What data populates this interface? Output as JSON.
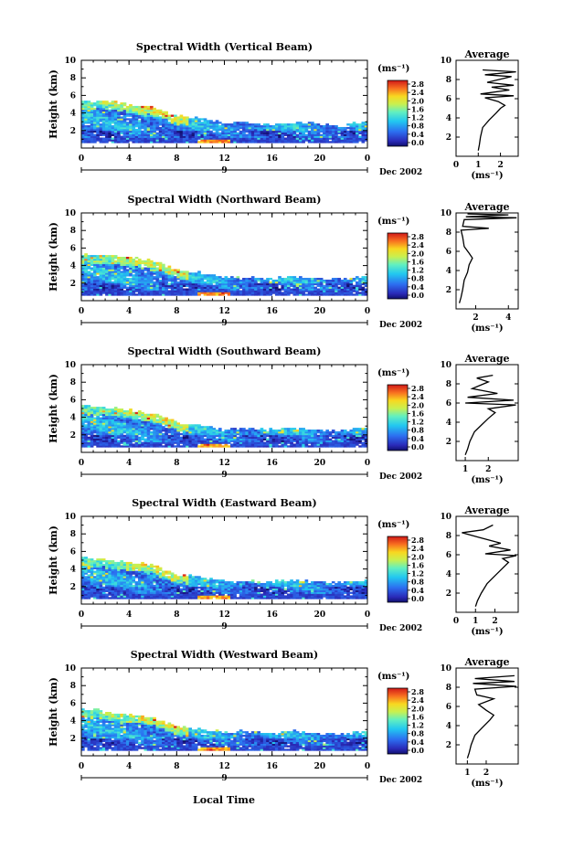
{
  "figure": {
    "xlabel": "Local Time",
    "ylabel": "Height (km)",
    "date_label": "Dec 2002",
    "date_tick": "9",
    "avg_title": "Average",
    "units": "(ms⁻¹)",
    "colorbar_ticks": [
      "2.8",
      "2.4",
      "2.0",
      "1.6",
      "1.2",
      "0.8",
      "0.4",
      "0.0"
    ]
  },
  "chart_data": [
    {
      "type": "heatmap",
      "title": "Spectral Width (Vertical Beam)",
      "x_ticks": [
        "0",
        "4",
        "8",
        "12",
        "16",
        "20",
        "0"
      ],
      "xlim": [
        0,
        24
      ],
      "ylim": [
        0,
        10
      ],
      "y_ticks": [
        "2",
        "4",
        "6",
        "8",
        "10"
      ],
      "colorbar_range": [
        0,
        3.0
      ],
      "boundary": [
        [
          0,
          5.3
        ],
        [
          2,
          5.3
        ],
        [
          4,
          4.9
        ],
        [
          6,
          4.6
        ],
        [
          8,
          3.6
        ],
        [
          10,
          3.3
        ],
        [
          12,
          2.8
        ],
        [
          14,
          2.8
        ],
        [
          16,
          2.6
        ],
        [
          18,
          2.8
        ],
        [
          20,
          2.6
        ],
        [
          22,
          2.5
        ],
        [
          24,
          2.9
        ]
      ],
      "profile": {
        "type": "line",
        "xlabel": "(ms⁻¹)",
        "xlim": [
          0,
          2.8
        ],
        "x_ticks": [
          "0",
          "1",
          "2"
        ],
        "points": [
          [
            1.0,
            0.6
          ],
          [
            1.05,
            1.2
          ],
          [
            1.1,
            2.0
          ],
          [
            1.2,
            3.0
          ],
          [
            1.5,
            3.8
          ],
          [
            1.8,
            4.5
          ],
          [
            2.0,
            5.0
          ],
          [
            2.2,
            5.3
          ],
          [
            1.9,
            5.7
          ],
          [
            1.3,
            6.1
          ],
          [
            2.6,
            6.3
          ],
          [
            1.1,
            6.5
          ],
          [
            2.4,
            6.9
          ],
          [
            1.6,
            7.2
          ],
          [
            2.6,
            7.4
          ],
          [
            1.4,
            7.7
          ],
          [
            2.5,
            8.3
          ],
          [
            1.3,
            8.5
          ],
          [
            2.7,
            8.8
          ],
          [
            1.2,
            9.0
          ]
        ]
      }
    },
    {
      "type": "heatmap",
      "title": "Spectral Width (Northward Beam)",
      "x_ticks": [
        "0",
        "4",
        "8",
        "12",
        "16",
        "20",
        "0"
      ],
      "xlim": [
        0,
        24
      ],
      "ylim": [
        0,
        10
      ],
      "y_ticks": [
        "2",
        "4",
        "6",
        "8",
        "10"
      ],
      "colorbar_range": [
        0,
        3.0
      ],
      "boundary": [
        [
          0,
          5.2
        ],
        [
          2,
          5.0
        ],
        [
          4,
          4.8
        ],
        [
          6,
          4.5
        ],
        [
          8,
          3.4
        ],
        [
          10,
          3.1
        ],
        [
          12,
          2.6
        ],
        [
          14,
          2.6
        ],
        [
          16,
          2.4
        ],
        [
          18,
          2.7
        ],
        [
          20,
          2.5
        ],
        [
          22,
          2.4
        ],
        [
          24,
          2.8
        ]
      ],
      "profile": {
        "type": "line",
        "xlabel": "(ms⁻¹)",
        "xlim": [
          0.8,
          4.6
        ],
        "x_ticks": [
          "2",
          "4"
        ],
        "points": [
          [
            1.0,
            0.6
          ],
          [
            1.1,
            1.2
          ],
          [
            1.2,
            2.0
          ],
          [
            1.3,
            3.0
          ],
          [
            1.5,
            3.8
          ],
          [
            1.6,
            4.6
          ],
          [
            1.8,
            5.3
          ],
          [
            1.6,
            5.8
          ],
          [
            1.3,
            6.5
          ],
          [
            1.2,
            7.5
          ],
          [
            1.1,
            8.2
          ],
          [
            2.8,
            8.4
          ],
          [
            1.2,
            8.6
          ],
          [
            1.3,
            9.3
          ],
          [
            4.5,
            9.5
          ],
          [
            1.4,
            9.6
          ],
          [
            4.0,
            9.8
          ],
          [
            1.5,
            9.9
          ]
        ]
      }
    },
    {
      "type": "heatmap",
      "title": "Spectral Width (Southward Beam)",
      "x_ticks": [
        "0",
        "4",
        "8",
        "12",
        "16",
        "20",
        "0"
      ],
      "xlim": [
        0,
        24
      ],
      "ylim": [
        0,
        10
      ],
      "y_ticks": [
        "2",
        "4",
        "6",
        "8",
        "10"
      ],
      "colorbar_range": [
        0,
        3.0
      ],
      "boundary": [
        [
          0,
          5.2
        ],
        [
          2,
          5.1
        ],
        [
          4,
          4.7
        ],
        [
          6,
          4.4
        ],
        [
          8,
          3.4
        ],
        [
          10,
          3.0
        ],
        [
          12,
          2.6
        ],
        [
          14,
          2.6
        ],
        [
          16,
          2.5
        ],
        [
          18,
          2.7
        ],
        [
          20,
          2.4
        ],
        [
          22,
          2.3
        ],
        [
          24,
          2.7
        ]
      ],
      "profile": {
        "type": "line",
        "xlabel": "(ms⁻¹)",
        "xlim": [
          0.6,
          3.3
        ],
        "x_ticks": [
          "1",
          "2"
        ],
        "points": [
          [
            1.0,
            0.6
          ],
          [
            1.1,
            1.2
          ],
          [
            1.2,
            2.0
          ],
          [
            1.4,
            3.0
          ],
          [
            1.7,
            3.7
          ],
          [
            2.0,
            4.4
          ],
          [
            2.3,
            5.0
          ],
          [
            2.0,
            5.4
          ],
          [
            3.2,
            5.8
          ],
          [
            1.0,
            6.0
          ],
          [
            3.1,
            6.3
          ],
          [
            1.1,
            6.6
          ],
          [
            2.4,
            7.0
          ],
          [
            1.3,
            7.5
          ],
          [
            2.0,
            8.2
          ],
          [
            1.5,
            8.6
          ],
          [
            2.2,
            8.9
          ]
        ]
      }
    },
    {
      "type": "heatmap",
      "title": "Spectral Width (Eastward Beam)",
      "x_ticks": [
        "0",
        "4",
        "8",
        "12",
        "16",
        "20",
        "0"
      ],
      "xlim": [
        0,
        24
      ],
      "ylim": [
        0,
        10
      ],
      "y_ticks": [
        "2",
        "4",
        "6",
        "8",
        "10"
      ],
      "colorbar_range": [
        0,
        3.0
      ],
      "boundary": [
        [
          0,
          5.3
        ],
        [
          2,
          5.0
        ],
        [
          4,
          4.7
        ],
        [
          6,
          4.4
        ],
        [
          8,
          3.3
        ],
        [
          10,
          3.0
        ],
        [
          12,
          2.5
        ],
        [
          14,
          2.5
        ],
        [
          16,
          2.5
        ],
        [
          18,
          2.7
        ],
        [
          20,
          2.4
        ],
        [
          22,
          2.3
        ],
        [
          24,
          2.8
        ]
      ],
      "profile": {
        "type": "line",
        "xlabel": "(ms⁻¹)",
        "xlim": [
          0,
          3.2
        ],
        "x_ticks": [
          "0",
          "1",
          "2"
        ],
        "points": [
          [
            1.0,
            0.6
          ],
          [
            1.1,
            1.2
          ],
          [
            1.3,
            2.0
          ],
          [
            1.6,
            3.0
          ],
          [
            2.0,
            3.8
          ],
          [
            2.4,
            4.6
          ],
          [
            2.7,
            5.2
          ],
          [
            2.4,
            5.6
          ],
          [
            3.1,
            5.9
          ],
          [
            1.5,
            6.1
          ],
          [
            2.8,
            6.5
          ],
          [
            1.7,
            6.9
          ],
          [
            2.3,
            7.2
          ],
          [
            1.2,
            7.8
          ],
          [
            0.3,
            8.3
          ],
          [
            1.4,
            8.6
          ],
          [
            1.9,
            9.1
          ]
        ]
      }
    },
    {
      "type": "heatmap",
      "title": "Spectral Width (Westward Beam)",
      "x_ticks": [
        "0",
        "4",
        "8",
        "12",
        "16",
        "20",
        "0"
      ],
      "xlim": [
        0,
        24
      ],
      "ylim": [
        0,
        10
      ],
      "y_ticks": [
        "2",
        "4",
        "6",
        "8",
        "10"
      ],
      "colorbar_range": [
        0,
        3.0
      ],
      "boundary": [
        [
          0,
          5.2
        ],
        [
          2,
          5.0
        ],
        [
          4,
          4.6
        ],
        [
          6,
          4.3
        ],
        [
          8,
          3.2
        ],
        [
          10,
          2.9
        ],
        [
          12,
          2.6
        ],
        [
          14,
          2.7
        ],
        [
          16,
          2.5
        ],
        [
          18,
          2.7
        ],
        [
          20,
          2.4
        ],
        [
          22,
          2.4
        ],
        [
          24,
          2.8
        ]
      ],
      "profile": {
        "type": "line",
        "xlabel": "(ms⁻¹)",
        "xlim": [
          0.4,
          3.7
        ],
        "x_ticks": [
          "1",
          "2"
        ],
        "points": [
          [
            1.0,
            0.6
          ],
          [
            1.1,
            1.2
          ],
          [
            1.2,
            2.0
          ],
          [
            1.4,
            3.0
          ],
          [
            1.8,
            3.8
          ],
          [
            2.2,
            4.6
          ],
          [
            2.4,
            5.1
          ],
          [
            2.0,
            5.6
          ],
          [
            1.6,
            6.2
          ],
          [
            2.4,
            6.8
          ],
          [
            1.5,
            7.2
          ],
          [
            1.4,
            7.8
          ],
          [
            3.6,
            8.1
          ],
          [
            1.3,
            8.4
          ],
          [
            3.5,
            8.6
          ],
          [
            1.4,
            8.9
          ],
          [
            3.5,
            9.2
          ]
        ]
      }
    }
  ]
}
